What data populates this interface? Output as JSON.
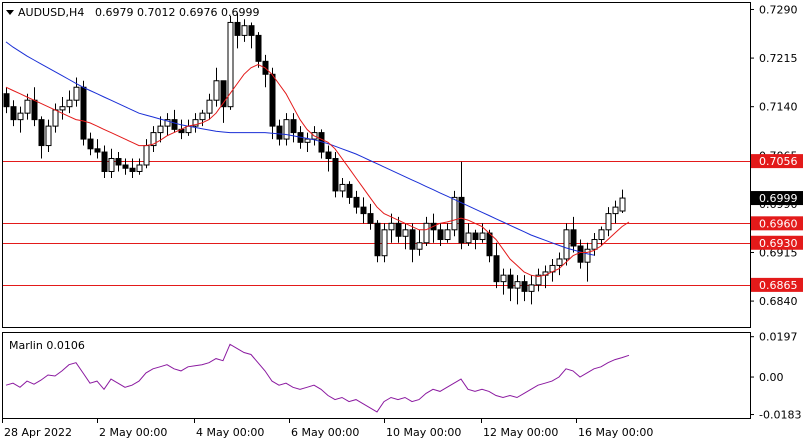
{
  "chart_data": [
    {
      "type": "candlestick",
      "title": "AUDUSD,H4",
      "ohlc_readout": "0.6979 0.7012 0.6976 0.6999",
      "ylim": [
        0.68,
        0.73
      ],
      "y_ticks": [
        "0.7290",
        "0.7215",
        "0.7140",
        "0.7065",
        "0.6990",
        "0.6915",
        "0.6840"
      ],
      "x_ticks": [
        "28 Apr 2022",
        "2 May 00:00",
        "4 May 00:00",
        "6 May 00:00",
        "10 May 00:00",
        "12 May 00:00",
        "16 May 00:00"
      ],
      "current_price": {
        "value": 0.6999,
        "label": "0.6999"
      },
      "levels": [
        {
          "value": 0.7056,
          "label": "0.7056"
        },
        {
          "value": 0.696,
          "label": "0.6960"
        },
        {
          "value": 0.693,
          "label": "0.6930"
        },
        {
          "value": 0.6865,
          "label": "0.6865"
        }
      ],
      "level_color": "#e31a1a",
      "ma_red_color": "#e31a1a",
      "ma_blue_color": "#1a2fd6",
      "candles": [
        [
          0.716,
          0.717,
          0.713,
          0.714
        ],
        [
          0.714,
          0.715,
          0.711,
          0.712
        ],
        [
          0.712,
          0.714,
          0.71,
          0.713
        ],
        [
          0.713,
          0.716,
          0.712,
          0.715
        ],
        [
          0.715,
          0.717,
          0.711,
          0.712
        ],
        [
          0.712,
          0.7125,
          0.706,
          0.708
        ],
        [
          0.708,
          0.712,
          0.707,
          0.711
        ],
        [
          0.711,
          0.7145,
          0.71,
          0.7135
        ],
        [
          0.7135,
          0.7155,
          0.712,
          0.714
        ],
        [
          0.714,
          0.7165,
          0.713,
          0.715
        ],
        [
          0.715,
          0.7185,
          0.714,
          0.717
        ],
        [
          0.717,
          0.718,
          0.708,
          0.709
        ],
        [
          0.709,
          0.71,
          0.7065,
          0.7075
        ],
        [
          0.7075,
          0.709,
          0.706,
          0.707
        ],
        [
          0.707,
          0.708,
          0.703,
          0.704
        ],
        [
          0.704,
          0.7075,
          0.703,
          0.706
        ],
        [
          0.706,
          0.707,
          0.704,
          0.705
        ],
        [
          0.705,
          0.706,
          0.7035,
          0.7045
        ],
        [
          0.7045,
          0.706,
          0.703,
          0.704
        ],
        [
          0.704,
          0.706,
          0.7035,
          0.705
        ],
        [
          0.705,
          0.709,
          0.7045,
          0.708
        ],
        [
          0.708,
          0.711,
          0.707,
          0.71
        ],
        [
          0.71,
          0.7125,
          0.7085,
          0.711
        ],
        [
          0.711,
          0.713,
          0.7095,
          0.712
        ],
        [
          0.712,
          0.7135,
          0.71,
          0.7105
        ],
        [
          0.7105,
          0.712,
          0.709,
          0.71
        ],
        [
          0.71,
          0.712,
          0.7095,
          0.711
        ],
        [
          0.711,
          0.713,
          0.71,
          0.712
        ],
        [
          0.712,
          0.7135,
          0.711,
          0.713
        ],
        [
          0.713,
          0.716,
          0.712,
          0.715
        ],
        [
          0.715,
          0.72,
          0.714,
          0.718
        ],
        [
          0.718,
          0.718,
          0.7115,
          0.714
        ],
        [
          0.714,
          0.728,
          0.7135,
          0.727
        ],
        [
          0.727,
          0.7285,
          0.723,
          0.725
        ],
        [
          0.725,
          0.7275,
          0.724,
          0.7265
        ],
        [
          0.7265,
          0.727,
          0.723,
          0.725
        ],
        [
          0.725,
          0.7255,
          0.72,
          0.721
        ],
        [
          0.721,
          0.722,
          0.717,
          0.719
        ],
        [
          0.719,
          0.72,
          0.709,
          0.711
        ],
        [
          0.711,
          0.712,
          0.708,
          0.709
        ],
        [
          0.709,
          0.713,
          0.708,
          0.712
        ],
        [
          0.712,
          0.713,
          0.7085,
          0.71
        ],
        [
          0.71,
          0.711,
          0.7075,
          0.7085
        ],
        [
          0.7085,
          0.71,
          0.707,
          0.709
        ],
        [
          0.709,
          0.711,
          0.708,
          0.71
        ],
        [
          0.71,
          0.7105,
          0.706,
          0.707
        ],
        [
          0.707,
          0.708,
          0.704,
          0.706
        ],
        [
          0.706,
          0.707,
          0.7,
          0.701
        ],
        [
          0.701,
          0.703,
          0.7,
          0.702
        ],
        [
          0.702,
          0.7025,
          0.699,
          0.7
        ],
        [
          0.7,
          0.701,
          0.6975,
          0.6985
        ],
        [
          0.6985,
          0.7,
          0.696,
          0.6975
        ],
        [
          0.6975,
          0.699,
          0.695,
          0.696
        ],
        [
          0.696,
          0.6965,
          0.69,
          0.691
        ],
        [
          0.691,
          0.696,
          0.69,
          0.695
        ],
        [
          0.695,
          0.6975,
          0.693,
          0.696
        ],
        [
          0.696,
          0.697,
          0.693,
          0.694
        ],
        [
          0.694,
          0.696,
          0.692,
          0.695
        ],
        [
          0.695,
          0.696,
          0.69,
          0.692
        ],
        [
          0.692,
          0.695,
          0.691,
          0.693
        ],
        [
          0.693,
          0.697,
          0.6925,
          0.696
        ],
        [
          0.696,
          0.6975,
          0.693,
          0.695
        ],
        [
          0.695,
          0.696,
          0.6925,
          0.6935
        ],
        [
          0.6935,
          0.696,
          0.693,
          0.695
        ],
        [
          0.695,
          0.701,
          0.694,
          0.7
        ],
        [
          0.7,
          0.7055,
          0.692,
          0.693
        ],
        [
          0.693,
          0.696,
          0.6925,
          0.6945
        ],
        [
          0.6945,
          0.695,
          0.692,
          0.6935
        ],
        [
          0.6935,
          0.696,
          0.693,
          0.6945
        ],
        [
          0.6945,
          0.695,
          0.69,
          0.691
        ],
        [
          0.691,
          0.693,
          0.686,
          0.687
        ],
        [
          0.687,
          0.689,
          0.685,
          0.688
        ],
        [
          0.688,
          0.689,
          0.684,
          0.686
        ],
        [
          0.686,
          0.688,
          0.6835,
          0.687
        ],
        [
          0.687,
          0.688,
          0.684,
          0.6855
        ],
        [
          0.6855,
          0.688,
          0.6835,
          0.6865
        ],
        [
          0.6865,
          0.689,
          0.6855,
          0.688
        ],
        [
          0.688,
          0.6895,
          0.686,
          0.6885
        ],
        [
          0.6885,
          0.6905,
          0.687,
          0.6895
        ],
        [
          0.6895,
          0.6915,
          0.688,
          0.6905
        ],
        [
          0.6905,
          0.696,
          0.6895,
          0.695
        ],
        [
          0.695,
          0.697,
          0.6915,
          0.6925
        ],
        [
          0.6925,
          0.6935,
          0.689,
          0.69
        ],
        [
          0.69,
          0.693,
          0.687,
          0.692
        ],
        [
          0.692,
          0.6945,
          0.691,
          0.6935
        ],
        [
          0.6935,
          0.6955,
          0.6925,
          0.695
        ],
        [
          0.695,
          0.6985,
          0.694,
          0.6975
        ],
        [
          0.6975,
          0.6995,
          0.696,
          0.6985
        ],
        [
          0.6979,
          0.7012,
          0.6976,
          0.6999
        ]
      ],
      "ma_red": [
        0.717,
        0.7165,
        0.716,
        0.7155,
        0.715,
        0.7145,
        0.714,
        0.7135,
        0.713,
        0.7125,
        0.712,
        0.7118,
        0.7115,
        0.711,
        0.7105,
        0.71,
        0.7095,
        0.709,
        0.7085,
        0.708,
        0.708,
        0.7082,
        0.7088,
        0.7095,
        0.71,
        0.7105,
        0.711,
        0.7112,
        0.7115,
        0.712,
        0.713,
        0.7145,
        0.716,
        0.7175,
        0.719,
        0.72,
        0.7205,
        0.72,
        0.719,
        0.7175,
        0.716,
        0.714,
        0.712,
        0.7105,
        0.7095,
        0.709,
        0.7085,
        0.7075,
        0.706,
        0.7045,
        0.703,
        0.7015,
        0.7,
        0.6985,
        0.6975,
        0.697,
        0.6965,
        0.696,
        0.6955,
        0.695,
        0.695,
        0.6955,
        0.696,
        0.6962,
        0.6965,
        0.6968,
        0.6965,
        0.696,
        0.6955,
        0.6945,
        0.6935,
        0.692,
        0.6905,
        0.6895,
        0.6885,
        0.688,
        0.6878,
        0.688,
        0.6885,
        0.689,
        0.69,
        0.691,
        0.6915,
        0.6915,
        0.6918,
        0.6925,
        0.6935,
        0.6945,
        0.6955,
        0.6962
      ],
      "ma_blue_start": 0,
      "ma_blue": [
        0.724,
        0.7232,
        0.7225,
        0.7218,
        0.7212,
        0.7206,
        0.72,
        0.7194,
        0.7188,
        0.7182,
        0.7176,
        0.717,
        0.7165,
        0.716,
        0.7155,
        0.715,
        0.7145,
        0.714,
        0.7135,
        0.713,
        0.7127,
        0.7124,
        0.7121,
        0.7118,
        0.7115,
        0.7112,
        0.711,
        0.7108,
        0.7106,
        0.7104,
        0.7102,
        0.7101,
        0.71,
        0.71,
        0.71,
        0.71,
        0.71,
        0.71,
        0.7099,
        0.7098,
        0.7097,
        0.7095,
        0.7093,
        0.7091,
        0.7089,
        0.7086,
        0.7083,
        0.7079,
        0.7075,
        0.7071,
        0.7067,
        0.7062,
        0.7057,
        0.7052,
        0.7047,
        0.7042,
        0.7037,
        0.7032,
        0.7027,
        0.7022,
        0.7017,
        0.7012,
        0.7007,
        0.7002,
        0.6997,
        0.6992,
        0.6987,
        0.6982,
        0.6977,
        0.6972,
        0.6967,
        0.6962,
        0.6957,
        0.6952,
        0.6947,
        0.6942,
        0.6938,
        0.6934,
        0.693,
        0.6926,
        0.6922,
        0.6919,
        0.6916,
        0.6913,
        0.6911
      ]
    },
    {
      "type": "line",
      "title": "Marlin 0.0106",
      "ylim": [
        -0.02,
        0.0215
      ],
      "y_ticks": [
        "0.0197",
        "0.00",
        "-0.0183"
      ],
      "line_color": "#8b1aa0",
      "values": [
        -0.004,
        -0.003,
        -0.005,
        -0.002,
        -0.0035,
        -0.0015,
        0.001,
        0.0005,
        0.003,
        0.006,
        0.007,
        0.002,
        -0.003,
        -0.002,
        -0.006,
        -0.001,
        -0.003,
        -0.005,
        -0.004,
        -0.002,
        0.002,
        0.004,
        0.005,
        0.006,
        0.004,
        0.003,
        0.005,
        0.0055,
        0.006,
        0.007,
        0.009,
        0.008,
        0.016,
        0.014,
        0.012,
        0.011,
        0.007,
        0.003,
        -0.002,
        -0.004,
        -0.003,
        -0.005,
        -0.006,
        -0.005,
        -0.004,
        -0.006,
        -0.009,
        -0.011,
        -0.01,
        -0.012,
        -0.011,
        -0.013,
        -0.015,
        -0.017,
        -0.012,
        -0.01,
        -0.011,
        -0.01,
        -0.012,
        -0.011,
        -0.008,
        -0.006,
        -0.007,
        -0.005,
        -0.003,
        -0.001,
        -0.006,
        -0.007,
        -0.006,
        -0.007,
        -0.009,
        -0.01,
        -0.009,
        -0.01,
        -0.008,
        -0.006,
        -0.004,
        -0.003,
        -0.002,
        0.0,
        0.004,
        0.003,
        0.0,
        0.002,
        0.004,
        0.005,
        0.007,
        0.0085,
        0.0095,
        0.0106
      ]
    }
  ]
}
